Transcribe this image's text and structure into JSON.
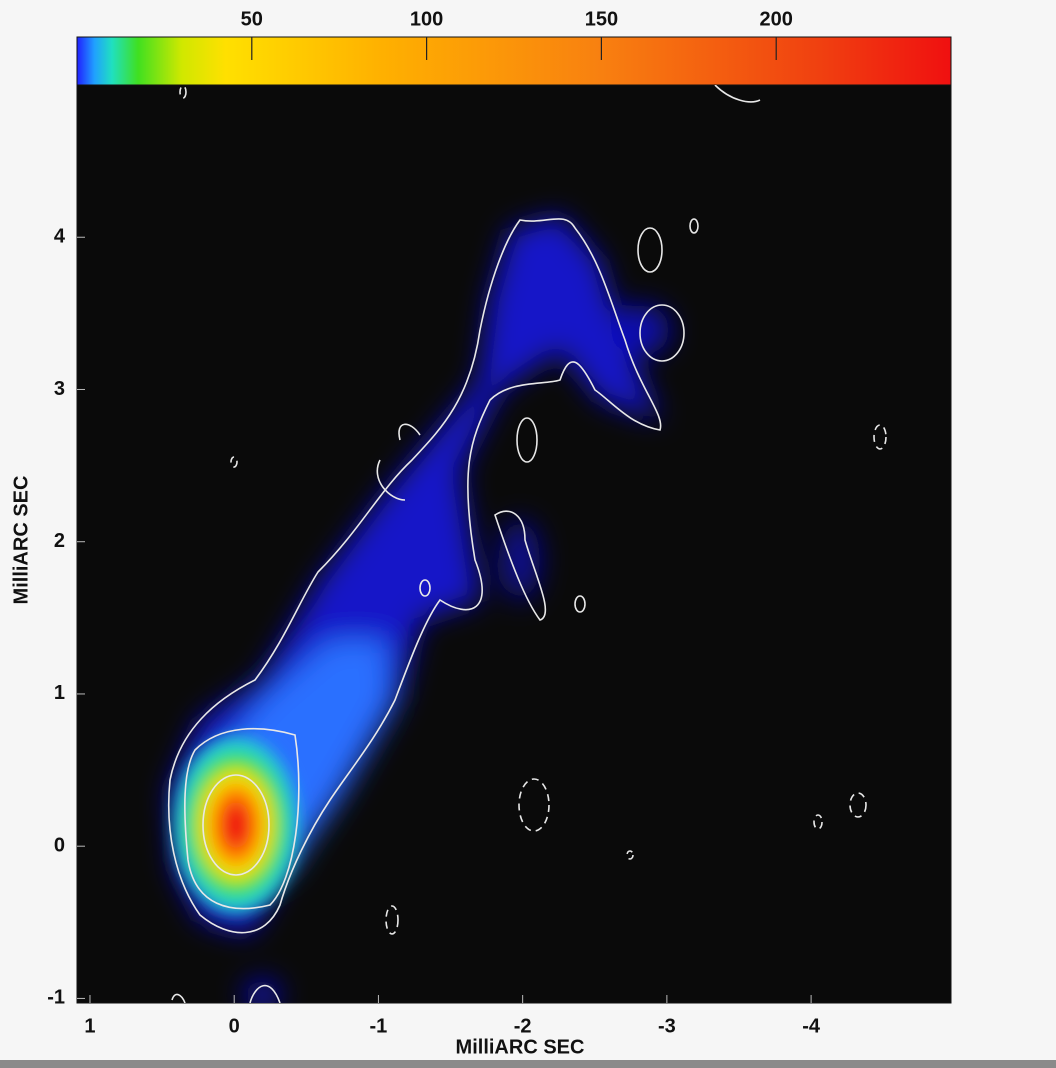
{
  "chart_data": {
    "type": "image",
    "xlabel": "MilliARC SEC",
    "ylabel": "MilliARC SEC",
    "xlim": [
      1.09,
      -4.97
    ],
    "ylim": [
      -1.03,
      5.0
    ],
    "xticks": [
      1,
      0,
      -1,
      -2,
      -3,
      -4
    ],
    "yticks": [
      -1,
      0,
      1,
      2,
      3,
      4
    ],
    "colorbar": {
      "lim": [
        0,
        250
      ],
      "ticks": [
        50,
        100,
        150,
        200
      ]
    }
  }
}
